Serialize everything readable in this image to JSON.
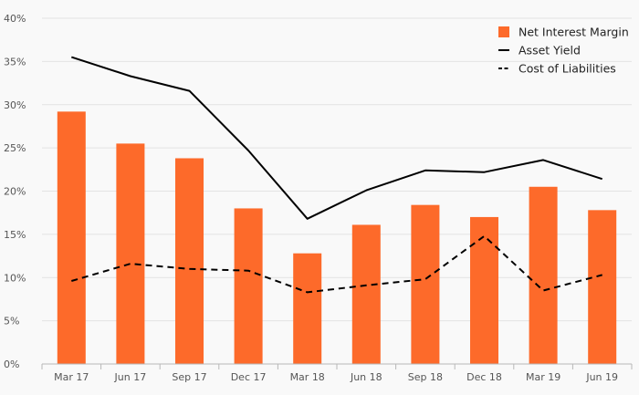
{
  "chart_data": {
    "type": "bar",
    "categories": [
      "Mar 17",
      "Jun 17",
      "Sep 17",
      "Dec 17",
      "Mar 18",
      "Jun 18",
      "Sep 18",
      "Dec 18",
      "Mar 19",
      "Jun 19"
    ],
    "ylim": [
      0,
      40
    ],
    "yticks": [
      0,
      5,
      10,
      15,
      20,
      25,
      30,
      35,
      40
    ],
    "ytick_suffix": "%",
    "grid": true,
    "legend_position": "top-right",
    "series": [
      {
        "name": "Net Interest Margin",
        "kind": "bar",
        "color": "#fd6a2a",
        "values": [
          29.2,
          25.5,
          23.8,
          18.0,
          12.8,
          16.1,
          18.4,
          17.0,
          20.5,
          17.8
        ]
      },
      {
        "name": "Asset Yield",
        "kind": "line",
        "style": "solid",
        "color": "#000000",
        "values": [
          35.5,
          33.3,
          31.6,
          24.7,
          16.8,
          20.1,
          22.4,
          22.2,
          23.6,
          21.4
        ]
      },
      {
        "name": "Cost of Liabilities",
        "kind": "line",
        "style": "dashed",
        "color": "#000000",
        "values": [
          9.6,
          11.6,
          11.0,
          10.8,
          8.3,
          9.1,
          9.8,
          14.8,
          8.5,
          10.3
        ]
      }
    ]
  }
}
